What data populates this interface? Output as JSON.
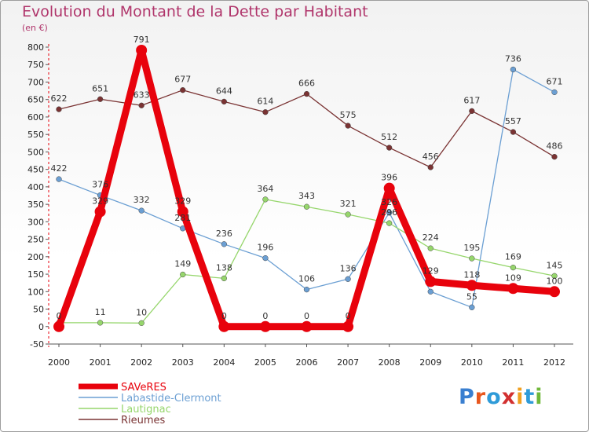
{
  "title": "Evolution du Montant de la Dette par Habitant",
  "unit_label": "(en €)",
  "brand": "Proxiti",
  "chart_data": {
    "type": "line",
    "title": "Evolution du Montant de la Dette par Habitant",
    "ylabel": "(en €)",
    "ylim": [
      -50,
      800
    ],
    "ytick_step": 50,
    "grid": false,
    "legend_position": "bottom-left",
    "x": [
      "2000",
      "2001",
      "2002",
      "2003",
      "2004",
      "2005",
      "2006",
      "2007",
      "2008",
      "2009",
      "2010",
      "2011",
      "2012"
    ],
    "series": [
      {
        "name": "SAVeRES",
        "color": "#e8020c",
        "values": [
          0,
          329,
          791,
          329,
          0,
          0,
          0,
          0,
          396,
          129,
          118,
          109,
          100
        ],
        "labels": [
          "0",
          "329",
          "791",
          "329",
          "0",
          "0",
          "0",
          "0",
          "396",
          "129",
          "118",
          "109",
          "100"
        ]
      },
      {
        "name": "Labastide-Clermont",
        "color": "#6b9fd3",
        "values": [
          422,
          376,
          332,
          281,
          236,
          196,
          106,
          136,
          326,
          100,
          55,
          736,
          671
        ],
        "labels": [
          "422",
          "376",
          "332",
          "281",
          "236",
          "196",
          "106",
          "136",
          "326",
          "",
          "55",
          "736",
          "671"
        ]
      },
      {
        "name": "Lautignac",
        "color": "#96d66c",
        "values": [
          11,
          11,
          10,
          149,
          138,
          364,
          343,
          321,
          296,
          224,
          195,
          169,
          145
        ],
        "labels": [
          "",
          "11",
          "10",
          "149",
          "138",
          "364",
          "343",
          "321",
          "296",
          "224",
          "195",
          "169",
          "145"
        ]
      },
      {
        "name": "Rieumes",
        "color": "#7a3333",
        "values": [
          622,
          651,
          633,
          677,
          644,
          614,
          666,
          575,
          512,
          456,
          617,
          557,
          486
        ],
        "labels": [
          "622",
          "651",
          "633",
          "677",
          "644",
          "614",
          "666",
          "575",
          "512",
          "456",
          "617",
          "557",
          "486"
        ]
      }
    ]
  }
}
